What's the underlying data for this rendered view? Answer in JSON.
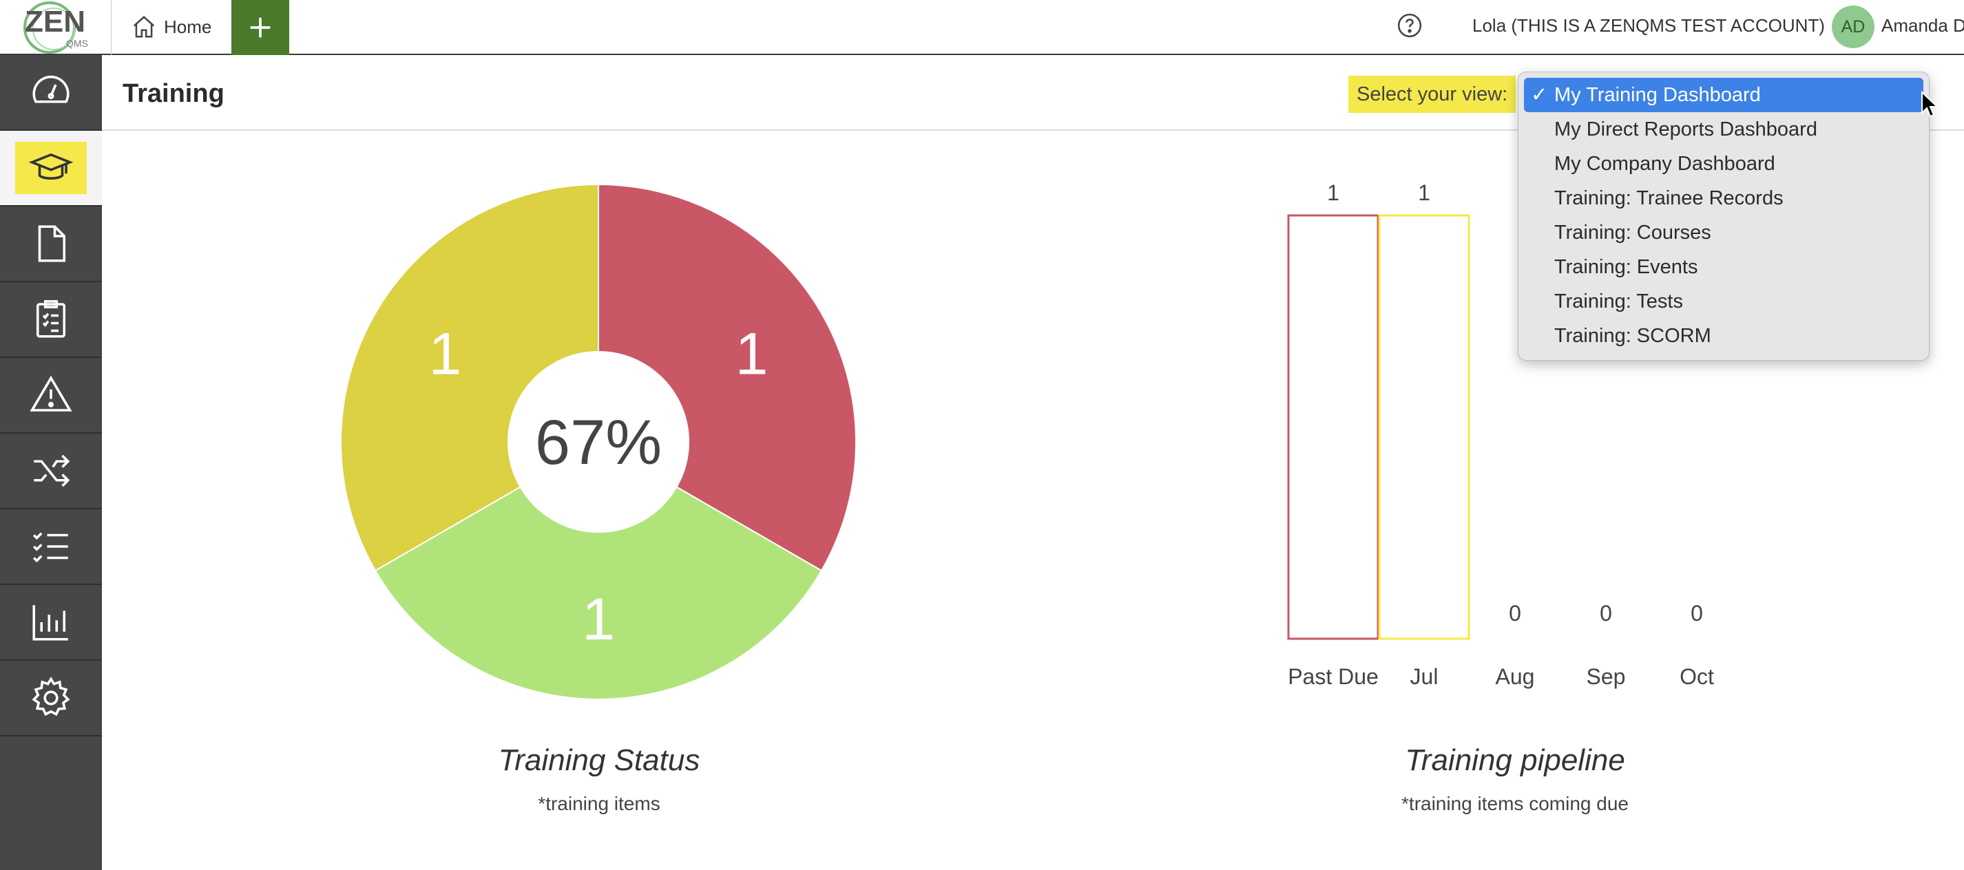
{
  "topbar": {
    "logo_text": "ZEN",
    "logo_sub": "QMS",
    "home_label": "Home",
    "account_label": "Lola (THIS IS A ZENQMS TEST ACCOUNT)",
    "avatar_initials": "AD",
    "user_name": "Amanda D"
  },
  "sidebar": {
    "items": [
      {
        "name": "dashboard",
        "icon": "speedometer-icon"
      },
      {
        "name": "training",
        "icon": "graduation-cap-icon",
        "active": true
      },
      {
        "name": "documents",
        "icon": "document-icon"
      },
      {
        "name": "checklists",
        "icon": "clipboard-check-icon"
      },
      {
        "name": "issues",
        "icon": "warning-icon"
      },
      {
        "name": "change",
        "icon": "shuffle-icon"
      },
      {
        "name": "lists",
        "icon": "checklist-icon"
      },
      {
        "name": "reports",
        "icon": "bar-chart-icon"
      },
      {
        "name": "settings",
        "icon": "gear-icon"
      }
    ]
  },
  "header": {
    "title": "Training",
    "view_label": "Select your view:"
  },
  "view_dropdown": {
    "selected": "My Training Dashboard",
    "options": [
      "My Training Dashboard",
      "My Direct Reports Dashboard",
      "My Company Dashboard",
      "Training: Trainee Records",
      "Training: Courses",
      "Training: Events",
      "Training: Tests",
      "Training: SCORM"
    ],
    "check_mark": "✓"
  },
  "colors": {
    "red": "#c95766",
    "yellow": "#dcd043",
    "green": "#b0e47a",
    "accent_yellow": "#f5e84a",
    "add_green": "#4a7a2a",
    "sidebar": "#474747",
    "selected_blue": "#3d82e6"
  },
  "chart_data": [
    {
      "type": "pie",
      "title": "Training Status",
      "subtitle": "*training items",
      "center_label": "67%",
      "slices": [
        {
          "value": 1,
          "label": "1",
          "color": "#c95766"
        },
        {
          "value": 1,
          "label": "1",
          "color": "#b0e47a"
        },
        {
          "value": 1,
          "label": "1",
          "color": "#dcd043"
        }
      ]
    },
    {
      "type": "bar",
      "title": "Training pipeline",
      "subtitle": "*training items coming due",
      "categories": [
        "Past Due",
        "Jul",
        "Aug",
        "Sep",
        "Oct"
      ],
      "values": [
        1,
        1,
        0,
        0,
        0
      ],
      "labels": [
        "1",
        "1",
        "0",
        "0",
        "0"
      ],
      "colors": [
        "#c95766",
        "#f5e84a",
        "#cccccc",
        "#cccccc",
        "#cccccc"
      ],
      "ylim": [
        0,
        1
      ]
    }
  ]
}
